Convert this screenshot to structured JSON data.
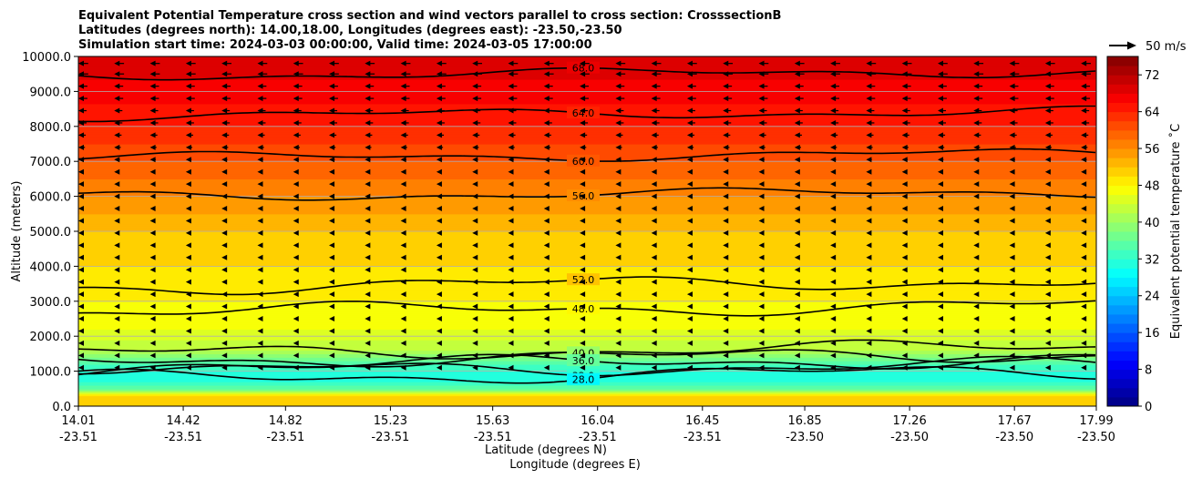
{
  "chart_data": {
    "type": "heatmap",
    "subtype": "filled-contour cross section with contour lines and wind vectors",
    "title_lines": [
      "Equivalent Potential Temperature cross section and wind vectors parallel to cross section: CrosssectionB",
      "Latitudes (degrees north): 14.00,18.00, Longitudes (degrees east): -23.50,-23.50",
      "Simulation start time: 2024-03-03 00:00:00, Valid time: 2024-03-05 17:00:00"
    ],
    "ylabel": "Altitude (meters)",
    "xlabel_line1": "Latitude (degrees N)",
    "xlabel_line2": "Longitude (degrees E)",
    "ylim": [
      0,
      10000
    ],
    "yticks": [
      "0.0",
      "1000.0",
      "2000.0",
      "3000.0",
      "4000.0",
      "5000.0",
      "6000.0",
      "7000.0",
      "8000.0",
      "9000.0",
      "10000.0"
    ],
    "ytick_values": [
      0,
      1000,
      2000,
      3000,
      4000,
      5000,
      6000,
      7000,
      8000,
      9000,
      10000
    ],
    "xlim": [
      14.01,
      17.99
    ],
    "xticks": [
      {
        "lat": "14.01",
        "lon": "-23.51",
        "value": 14.01
      },
      {
        "lat": "14.42",
        "lon": "-23.51",
        "value": 14.42
      },
      {
        "lat": "14.82",
        "lon": "-23.51",
        "value": 14.82
      },
      {
        "lat": "15.23",
        "lon": "-23.51",
        "value": 15.23
      },
      {
        "lat": "15.63",
        "lon": "-23.51",
        "value": 15.63
      },
      {
        "lat": "16.04",
        "lon": "-23.51",
        "value": 16.04
      },
      {
        "lat": "16.45",
        "lon": "-23.51",
        "value": 16.45
      },
      {
        "lat": "16.85",
        "lon": "-23.50",
        "value": 16.85
      },
      {
        "lat": "17.26",
        "lon": "-23.50",
        "value": 17.26
      },
      {
        "lat": "17.67",
        "lon": "-23.50",
        "value": 17.67
      },
      {
        "lat": "17.99",
        "lon": "-23.50",
        "value": 17.99
      }
    ],
    "grid": "horizontal",
    "colorbar": {
      "label": "Equivalent potential temperature ˚C",
      "range": [
        0,
        76
      ],
      "ticks": [
        "0",
        "8",
        "16",
        "24",
        "32",
        "40",
        "48",
        "56",
        "64",
        "72"
      ],
      "tick_values": [
        0,
        8,
        16,
        24,
        32,
        40,
        48,
        56,
        64,
        72
      ],
      "colormap": "jet"
    },
    "quiver_key": {
      "label": "50 m/s",
      "speed": 50
    },
    "field_profile": [
      {
        "altitude": 0,
        "theta_e": 52
      },
      {
        "altitude": 300,
        "theta_e": 50
      },
      {
        "altitude": 500,
        "theta_e": 36
      },
      {
        "altitude": 800,
        "theta_e": 30
      },
      {
        "altitude": 1200,
        "theta_e": 34
      },
      {
        "altitude": 1600,
        "theta_e": 42
      },
      {
        "altitude": 2200,
        "theta_e": 46
      },
      {
        "altitude": 3000,
        "theta_e": 48
      },
      {
        "altitude": 4000,
        "theta_e": 50
      },
      {
        "altitude": 5000,
        "theta_e": 52
      },
      {
        "altitude": 6000,
        "theta_e": 56
      },
      {
        "altitude": 7000,
        "theta_e": 60
      },
      {
        "altitude": 8000,
        "theta_e": 64
      },
      {
        "altitude": 9000,
        "theta_e": 67
      },
      {
        "altitude": 10000,
        "theta_e": 70
      }
    ],
    "contour_levels": [
      {
        "value": 68.0,
        "label": "68.0",
        "altitude": 9450
      },
      {
        "value": 64.0,
        "label": "64.0",
        "altitude": 8300
      },
      {
        "value": 60.0,
        "label": "60.0",
        "altitude": 7100
      },
      {
        "value": 56.0,
        "label": "56.0",
        "altitude": 6000
      },
      {
        "value": 52.0,
        "label": "52.0",
        "altitude": 3400
      },
      {
        "value": 48.0,
        "label": "48.0",
        "altitude": 2700
      },
      {
        "value": 44.0,
        "label": "44.0",
        "altitude": 1500
      },
      {
        "value": 40.0,
        "label": "40.0",
        "altitude": 1300
      },
      {
        "value": 36.0,
        "label": "36.0",
        "altitude": 1150
      },
      {
        "value": 32.0,
        "label": "32.0",
        "altitude": 1000
      },
      {
        "value": 28.0,
        "label": "28.0",
        "altitude": 800
      }
    ],
    "wind": {
      "direction": "westward (right to left)",
      "rows": [
        {
          "altitude": 9800,
          "speed": 12
        },
        {
          "altitude": 9500,
          "speed": 12
        },
        {
          "altitude": 9150,
          "speed": 11
        },
        {
          "altitude": 8800,
          "speed": 11
        },
        {
          "altitude": 8450,
          "speed": 10
        },
        {
          "altitude": 8100,
          "speed": 10
        },
        {
          "altitude": 7750,
          "speed": 9
        },
        {
          "altitude": 7400,
          "speed": 8
        },
        {
          "altitude": 7050,
          "speed": 7
        },
        {
          "altitude": 6700,
          "speed": 6
        },
        {
          "altitude": 6350,
          "speed": 5
        },
        {
          "altitude": 6000,
          "speed": 4
        },
        {
          "altitude": 5650,
          "speed": 4
        },
        {
          "altitude": 5300,
          "speed": 3
        },
        {
          "altitude": 4950,
          "speed": 3
        },
        {
          "altitude": 4600,
          "speed": 3
        },
        {
          "altitude": 4250,
          "speed": 2
        },
        {
          "altitude": 3900,
          "speed": 2
        },
        {
          "altitude": 3550,
          "speed": 2
        },
        {
          "altitude": 3200,
          "speed": 2
        },
        {
          "altitude": 2850,
          "speed": 2
        },
        {
          "altitude": 2500,
          "speed": 2
        },
        {
          "altitude": 2150,
          "speed": 2
        },
        {
          "altitude": 1800,
          "speed": 1
        },
        {
          "altitude": 1450,
          "speed": 1
        },
        {
          "altitude": 1100,
          "speed": 1
        }
      ],
      "columns": [
        14.01,
        14.15,
        14.29,
        14.43,
        14.57,
        14.71,
        14.85,
        14.99,
        15.13,
        15.27,
        15.41,
        15.55,
        15.69,
        15.83,
        15.97,
        16.11,
        16.25,
        16.39,
        16.53,
        16.67,
        16.81,
        16.95,
        17.09,
        17.23,
        17.37,
        17.51,
        17.65,
        17.79,
        17.93
      ]
    }
  }
}
